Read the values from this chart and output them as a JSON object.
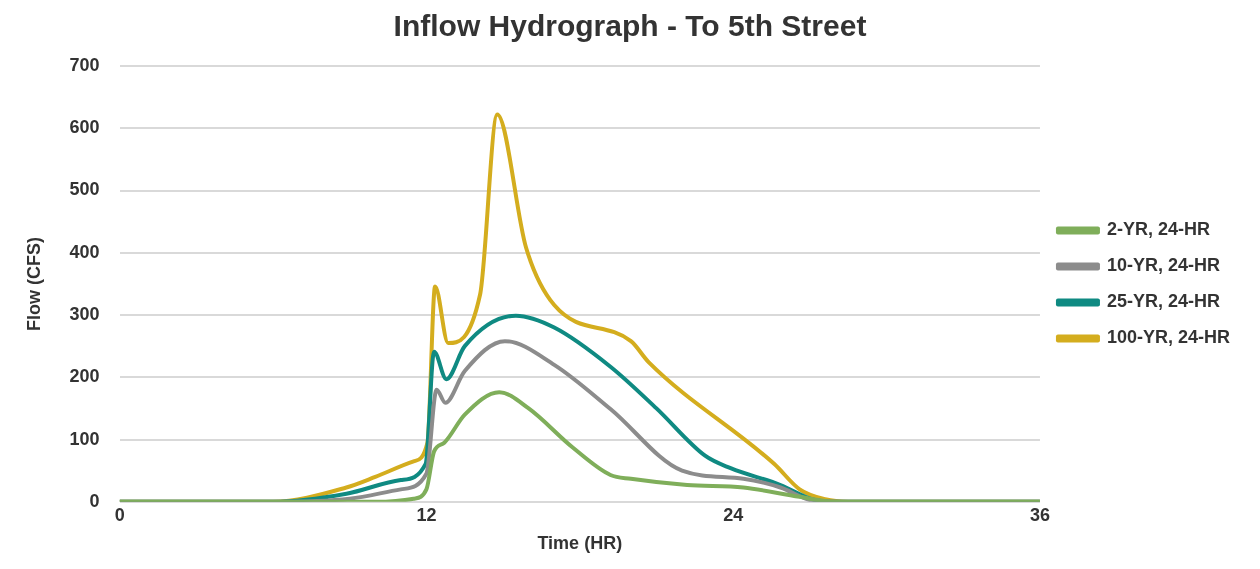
{
  "chart_data": {
    "type": "line",
    "title": "Inflow Hydrograph - To 5th Street",
    "xlabel": "Time (HR)",
    "ylabel": "Flow (CFS)",
    "xlim": [
      0,
      36
    ],
    "xticks": [
      0,
      12,
      24,
      36
    ],
    "ylim": [
      0,
      700
    ],
    "yticks": [
      0,
      100,
      200,
      300,
      400,
      500,
      600,
      700
    ],
    "grid": "y",
    "legend": "right",
    "marker": "none",
    "line_style": "solid",
    "series": [
      {
        "name": "2-YR, 24-HR",
        "color": "#7fae5a",
        "x": [
          0,
          10,
          11.5,
          12,
          12.3,
          12.7,
          13.5,
          14.85,
          16,
          17.7,
          19.2,
          20,
          22.2,
          24.4,
          26.6,
          28,
          36
        ],
        "values": [
          0,
          0,
          5,
          20,
          81,
          95,
          140,
          176,
          150,
          88,
          43,
          37,
          27,
          23,
          8,
          0,
          0
        ]
      },
      {
        "name": "10-YR, 24-HR",
        "color": "#8c8c8c",
        "x": [
          0,
          6,
          9,
          11,
          12,
          12.4,
          12.74,
          13.5,
          15.07,
          17,
          19.2,
          22,
          24.4,
          25.85,
          27,
          28,
          36
        ],
        "values": [
          0,
          0,
          5,
          20,
          45,
          180,
          159,
          210,
          258,
          220,
          149,
          50,
          37,
          23,
          3,
          0,
          0
        ]
      },
      {
        "name": "25-YR, 24-HR",
        "color": "#0f8a82",
        "x": [
          0,
          6,
          8.87,
          11,
          11.97,
          12.3,
          12.78,
          13.5,
          15.5,
          17,
          19.2,
          21,
          22.9,
          23.9,
          25.85,
          27.1,
          28,
          36
        ],
        "values": [
          0,
          0,
          13,
          35,
          61,
          241,
          197,
          250,
          299,
          280,
          217,
          150,
          74,
          54,
          27,
          4,
          0,
          0
        ]
      },
      {
        "name": "100-YR, 24-HR",
        "color": "#d4ad1e",
        "x": [
          0,
          6,
          8.87,
          10,
          11.5,
          12.04,
          12.34,
          12.85,
          14.1,
          14.77,
          15.9,
          17,
          20,
          20.7,
          25.6,
          26.6,
          27.6,
          28.5,
          36
        ],
        "values": [
          0,
          0,
          23,
          40,
          65,
          95,
          346,
          255,
          333,
          622,
          408,
          316,
          258,
          224,
          61,
          20,
          4,
          0,
          0
        ]
      }
    ]
  }
}
